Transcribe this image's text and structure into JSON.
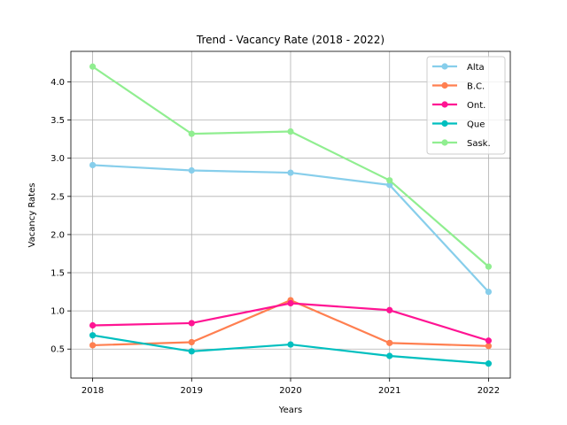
{
  "chart_data": {
    "type": "line",
    "title": "Trend - Vacancy Rate (2018 - 2022)",
    "xlabel": "Years",
    "ylabel": "Vacancy Rates",
    "x": [
      2018,
      2019,
      2020,
      2021,
      2022
    ],
    "x_tick_labels": [
      "2018",
      "2019",
      "2020",
      "2021",
      "2022"
    ],
    "xlim": [
      2017.78,
      2022.22
    ],
    "ylim": [
      0.12,
      4.4
    ],
    "y_ticks": [
      0.5,
      1.0,
      1.5,
      2.0,
      2.5,
      3.0,
      3.5,
      4.0
    ],
    "y_tick_labels": [
      "0.5",
      "1.0",
      "1.5",
      "2.0",
      "2.5",
      "3.0",
      "3.5",
      "4.0"
    ],
    "grid": true,
    "legend_position": "top-right",
    "series": [
      {
        "name": "Alta",
        "color": "#87ceeb",
        "values": [
          2.91,
          2.84,
          2.81,
          2.65,
          1.25
        ]
      },
      {
        "name": "B.C.",
        "color": "#ff7f50",
        "values": [
          0.55,
          0.59,
          1.14,
          0.58,
          0.54
        ]
      },
      {
        "name": "Ont.",
        "color": "#ff1493",
        "values": [
          0.81,
          0.84,
          1.1,
          1.01,
          0.61
        ]
      },
      {
        "name": "Que",
        "color": "#00bfbf",
        "values": [
          0.68,
          0.47,
          0.56,
          0.41,
          0.31
        ]
      },
      {
        "name": "Sask.",
        "color": "#90ee90",
        "values": [
          4.2,
          3.32,
          3.35,
          2.71,
          1.58
        ]
      }
    ]
  }
}
